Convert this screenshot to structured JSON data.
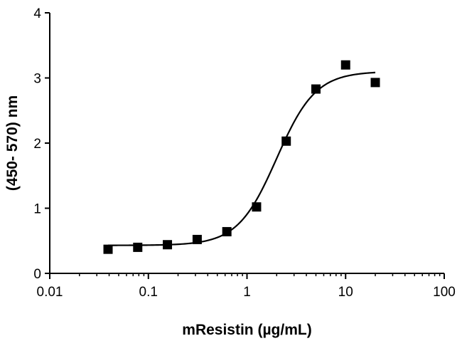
{
  "chart_data": {
    "type": "scatter",
    "title": "",
    "xlabel": "mResistin (µg/mL)",
    "ylabel": "(450- 570) nm",
    "xscale": "log",
    "xlim": [
      0.01,
      100
    ],
    "ylim": [
      0,
      4
    ],
    "xticks": [
      "0.01",
      "0.1",
      "1",
      "10",
      "100"
    ],
    "yticks": [
      "0",
      "1",
      "2",
      "3",
      "4"
    ],
    "grid": false,
    "legend": "none",
    "marker": "square",
    "color": "#000000",
    "series": [
      {
        "x": [
          0.039,
          0.078,
          0.156,
          0.3125,
          0.625,
          1.25,
          2.5,
          5,
          10,
          20
        ],
        "y": [
          0.37,
          0.4,
          0.44,
          0.52,
          0.64,
          1.02,
          2.03,
          2.83,
          3.2,
          2.93
        ]
      }
    ],
    "fit_curve": {
      "type": "sigmoidal",
      "bottom": 0.43,
      "top": 3.1,
      "ec50": 2.0,
      "hill": 2.2
    }
  }
}
